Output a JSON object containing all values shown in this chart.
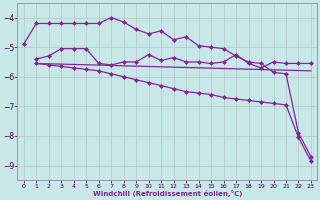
{
  "bg_color": "#c8e8e8",
  "line_color": "#882299",
  "xlabel": "Windchill (Refroidissement éolien,°C)",
  "ylim": [
    -9.5,
    -3.5
  ],
  "xlim": [
    -0.5,
    23.5
  ],
  "yticks": [
    -9,
    -8,
    -7,
    -6,
    -5,
    -4
  ],
  "xticks": [
    0,
    1,
    2,
    3,
    4,
    5,
    6,
    7,
    8,
    9,
    10,
    11,
    12,
    13,
    14,
    15,
    16,
    17,
    18,
    19,
    20,
    21,
    22,
    23
  ],
  "line1_x": [
    0,
    1,
    2,
    3,
    4,
    5,
    6,
    7,
    8,
    9,
    10,
    11,
    12,
    13,
    14,
    15,
    16,
    17,
    18,
    19,
    20,
    21,
    22,
    23
  ],
  "line1_y": [
    -4.9,
    -4.2,
    -4.2,
    -4.2,
    -4.2,
    -4.2,
    -4.2,
    -4.0,
    -4.15,
    -4.4,
    -4.55,
    -4.45,
    -4.75,
    -4.65,
    -4.95,
    -5.0,
    -5.05,
    -5.3,
    -5.5,
    -5.55,
    -5.85,
    -5.9,
    -7.9,
    -8.7
  ],
  "line2_x": [
    1,
    2,
    3,
    4,
    5,
    6,
    7,
    8,
    9,
    10,
    11,
    12,
    13,
    14,
    15,
    16,
    17,
    18,
    19,
    20,
    21,
    22,
    23
  ],
  "line2_y": [
    -5.4,
    -5.3,
    -5.05,
    -5.05,
    -5.05,
    -5.55,
    -5.6,
    -5.5,
    -5.5,
    -5.25,
    -5.45,
    -5.35,
    -5.5,
    -5.5,
    -5.55,
    -5.5,
    -5.25,
    -5.55,
    -5.7,
    -5.5,
    -5.55,
    -5.55,
    -5.55
  ],
  "line3_x": [
    1,
    23
  ],
  "line3_y": [
    -5.55,
    -5.8
  ],
  "line4_x": [
    1,
    2,
    3,
    4,
    5,
    6,
    7,
    8,
    9,
    10,
    11,
    12,
    13,
    14,
    15,
    16,
    17,
    18,
    19,
    20,
    21,
    22,
    23
  ],
  "line4_y": [
    -5.55,
    -5.6,
    -5.65,
    -5.7,
    -5.75,
    -5.8,
    -5.9,
    -6.0,
    -6.1,
    -6.2,
    -6.3,
    -6.4,
    -6.5,
    -6.55,
    -6.6,
    -6.7,
    -6.75,
    -6.8,
    -6.85,
    -6.9,
    -6.95,
    -8.05,
    -8.85
  ]
}
